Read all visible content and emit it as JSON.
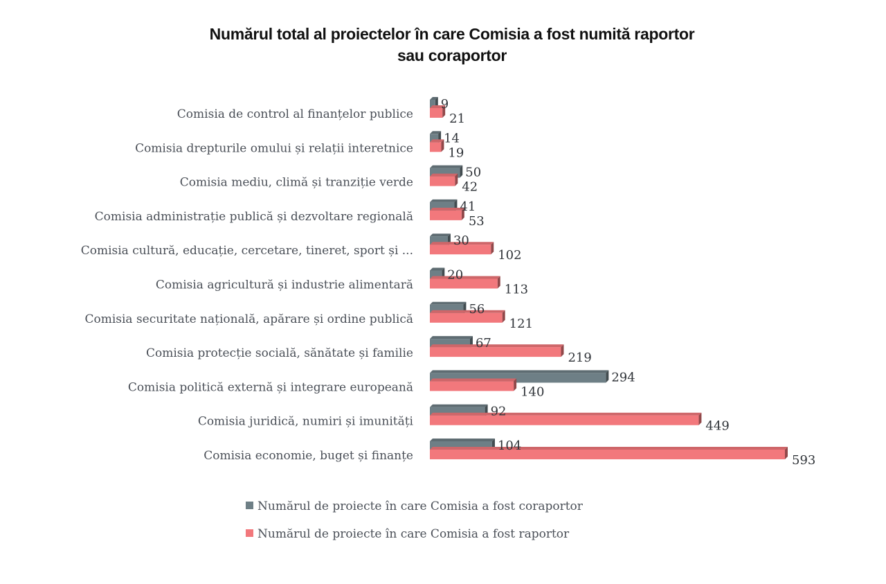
{
  "chart_data": {
    "type": "bar",
    "orientation": "horizontal",
    "title": "Numărul total al proiectelor  în care Comisia a fost numită raportor sau coraportor",
    "title_lines": [
      "Numărul total al proiectelor  în care Comisia a fost numită raportor",
      "sau coraportor"
    ],
    "xlabel": "",
    "ylabel": "",
    "grid": false,
    "legend_position": "bottom",
    "categories": [
      "Comisia de control al finanțelor publice",
      "Comisia drepturile omului și relații interetnice",
      "Comisia mediu, climă și tranziție verde",
      "Comisia administrație publică și dezvoltare regională",
      "Comisia cultură, educație, cercetare, tineret, sport și ...",
      "Comisia agricultură și industrie alimentară",
      "Comisia securitate națională, apărare și ordine publică",
      "Comisia protecție socială, sănătate și familie",
      "Comisia politică externă și integrare europeană",
      "Comisia juridică, numiri și imunități",
      "Comisia economie, buget și finanțe"
    ],
    "series": [
      {
        "name": "Numărul de proiecte în care Comisia  a fost coraportor",
        "color": "#6e7f86",
        "values": [
          9,
          14,
          50,
          41,
          30,
          20,
          56,
          67,
          294,
          92,
          104
        ]
      },
      {
        "name": "Numărul de proiecte în care Comisia a fost raportor",
        "color": "#f2787c",
        "values": [
          21,
          19,
          42,
          53,
          102,
          113,
          121,
          219,
          140,
          449,
          593
        ]
      }
    ],
    "xlim": [
      0,
      600
    ]
  }
}
